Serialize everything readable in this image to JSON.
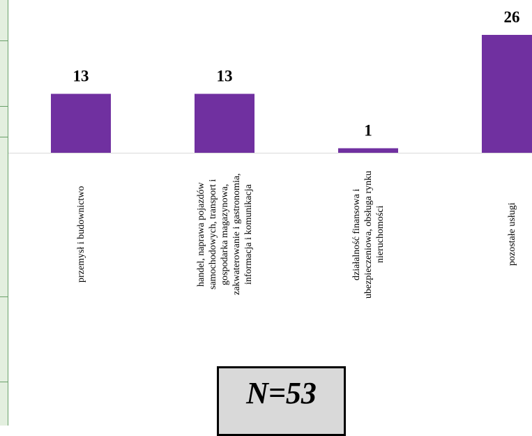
{
  "chart_data": {
    "type": "bar",
    "categories": [
      "przemysł i budownictwo",
      "handel, naprawa pojazdów samochodowych, transport i gospodarka magazynowa, zakwaterowanie i gastronomia, informacja i komunikacja",
      "działalność finansowa i ubezpieczeniowa, obsługa rynku nieruchomości",
      "pozostałe usługi"
    ],
    "values": [
      13,
      13,
      1,
      26
    ],
    "value_labels": [
      "13",
      "13",
      "1",
      "26"
    ],
    "title": "",
    "xlabel": "",
    "ylabel": "",
    "ylim": [
      0,
      26
    ],
    "grid": false,
    "legend": "none",
    "bar_color": "#7030a0",
    "axis_color": "#d9d9d9"
  },
  "annotation": {
    "text": "N=53",
    "background": "#d9d9d9"
  }
}
